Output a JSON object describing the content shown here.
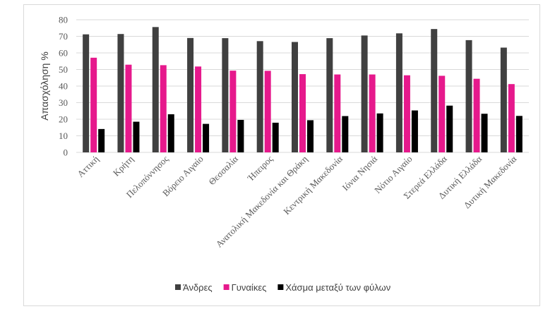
{
  "chart_data": {
    "type": "bar",
    "ylabel": "Απασχόληση %",
    "xlabel": "",
    "ylim": [
      0,
      80
    ],
    "yticks": [
      0,
      10,
      20,
      30,
      40,
      50,
      60,
      70,
      80
    ],
    "grid": "horizontal",
    "legend_position": "bottom",
    "categories": [
      "Αττική",
      "Κρήτη",
      "Πελοπόννησος",
      "Βόρειο Αιγαίο",
      "Θεσσαλία",
      "Ήπειρος",
      "Ανατολική Μακεδονία και Θράκη",
      "Κεντρική Μακεδονία",
      "Ιόνια Νησιά",
      "Νότιο Αιγαίο",
      "Στερεά Ελλάδα",
      "Δυτική Ελλάδα",
      "Δυτική Μακεδονία"
    ],
    "series": [
      {
        "name": "Άνδρες",
        "color": "#404040",
        "values": [
          71.2,
          71.4,
          75.6,
          69.0,
          68.9,
          67.1,
          66.6,
          68.9,
          70.5,
          71.8,
          74.4,
          67.7,
          63.2
        ]
      },
      {
        "name": "Γυναίκες",
        "color": "#e6198c",
        "values": [
          57.1,
          52.9,
          52.6,
          51.8,
          49.3,
          49.2,
          47.2,
          47.0,
          47.0,
          46.5,
          46.2,
          44.4,
          41.2
        ]
      },
      {
        "name": "Χάσμα μεταξύ των φύλων",
        "color": "#000000",
        "values": [
          14.1,
          18.5,
          23.0,
          17.2,
          19.6,
          17.9,
          19.4,
          21.9,
          23.5,
          25.3,
          28.2,
          23.3,
          22.0
        ]
      }
    ]
  }
}
